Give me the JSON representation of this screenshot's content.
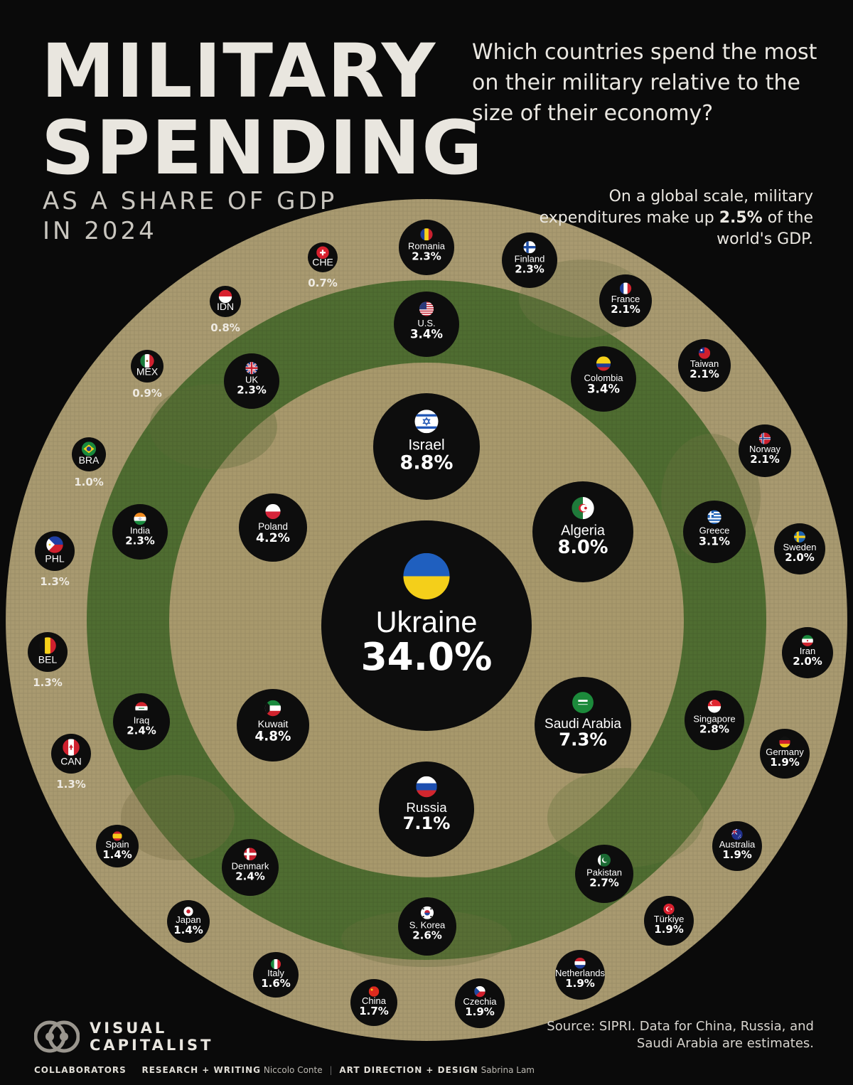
{
  "header": {
    "title_line1": "MILITARY",
    "title_line2": "SPENDING",
    "subtitle_line1": "AS A SHARE OF GDP",
    "subtitle_line2": "IN 2024",
    "question": "Which countries spend the most on their military relative to the size of their economy?",
    "note_before": "On a global scale, military expenditures make up ",
    "note_value": "2.5%",
    "note_after": " of the world's GDP."
  },
  "footer": {
    "source": "Source: SIPRI. Data for China, Russia, and Saudi Arabia are estimates.",
    "logo_line1": "VISUAL",
    "logo_line2": "CAPITALIST",
    "collab_label": "COLLABORATORS",
    "research_label": "RESEARCH + WRITING",
    "research_name": "Niccolo Conte",
    "art_label": "ART DIRECTION + DESIGN",
    "art_name": "Sabrina Lam"
  },
  "colors": {
    "outer_ring": "#a99a70",
    "middle_ring": "#4f6d31",
    "inner_ring": "#a8996c",
    "bubble": "#0d0d0d"
  },
  "chart_data": {
    "type": "bubble",
    "unit": "% of GDP",
    "year": 2024,
    "points": [
      {
        "country": "Ukraine",
        "value": 34.0,
        "label": "34.0%",
        "flag": "ukraine"
      },
      {
        "country": "Israel",
        "value": 8.8,
        "label": "8.8%",
        "flag": "israel"
      },
      {
        "country": "Algeria",
        "value": 8.0,
        "label": "8.0%",
        "flag": "algeria"
      },
      {
        "country": "Saudi Arabia",
        "value": 7.3,
        "label": "7.3%",
        "flag": "saudi"
      },
      {
        "country": "Russia",
        "value": 7.1,
        "label": "7.1%",
        "flag": "russia"
      },
      {
        "country": "Kuwait",
        "value": 4.8,
        "label": "4.8%",
        "flag": "kuwait"
      },
      {
        "country": "Poland",
        "value": 4.2,
        "label": "4.2%",
        "flag": "poland"
      },
      {
        "country": "U.S.",
        "value": 3.4,
        "label": "3.4%",
        "flag": "us"
      },
      {
        "country": "Colombia",
        "value": 3.4,
        "label": "3.4%",
        "flag": "colombia"
      },
      {
        "country": "Greece",
        "value": 3.1,
        "label": "3.1%",
        "flag": "greece"
      },
      {
        "country": "Singapore",
        "value": 2.8,
        "label": "2.8%",
        "flag": "singapore"
      },
      {
        "country": "Pakistan",
        "value": 2.7,
        "label": "2.7%",
        "flag": "pakistan"
      },
      {
        "country": "S. Korea",
        "value": 2.6,
        "label": "2.6%",
        "flag": "skorea"
      },
      {
        "country": "Denmark",
        "value": 2.4,
        "label": "2.4%",
        "flag": "denmark"
      },
      {
        "country": "Iraq",
        "value": 2.4,
        "label": "2.4%",
        "flag": "iraq"
      },
      {
        "country": "India",
        "value": 2.3,
        "label": "2.3%",
        "flag": "india"
      },
      {
        "country": "UK",
        "value": 2.3,
        "label": "2.3%",
        "flag": "uk"
      },
      {
        "country": "Romania",
        "value": 2.3,
        "label": "2.3%",
        "flag": "romania"
      },
      {
        "country": "Finland",
        "value": 2.3,
        "label": "2.3%",
        "flag": "finland"
      },
      {
        "country": "France",
        "value": 2.1,
        "label": "2.1%",
        "flag": "france"
      },
      {
        "country": "Taiwan",
        "value": 2.1,
        "label": "2.1%",
        "flag": "taiwan"
      },
      {
        "country": "Norway",
        "value": 2.1,
        "label": "2.1%",
        "flag": "norway"
      },
      {
        "country": "Sweden",
        "value": 2.0,
        "label": "2.0%",
        "flag": "sweden"
      },
      {
        "country": "Iran",
        "value": 2.0,
        "label": "2.0%",
        "flag": "iran"
      },
      {
        "country": "Germany",
        "value": 1.9,
        "label": "1.9%",
        "flag": "germany"
      },
      {
        "country": "Australia",
        "value": 1.9,
        "label": "1.9%",
        "flag": "australia"
      },
      {
        "country": "Türkiye",
        "value": 1.9,
        "label": "1.9%",
        "flag": "turkiye"
      },
      {
        "country": "Netherlands",
        "value": 1.9,
        "label": "1.9%",
        "flag": "netherlands"
      },
      {
        "country": "Czechia",
        "value": 1.9,
        "label": "1.9%",
        "flag": "czechia"
      },
      {
        "country": "China",
        "value": 1.7,
        "label": "1.7%",
        "flag": "china"
      },
      {
        "country": "Italy",
        "value": 1.6,
        "label": "1.6%",
        "flag": "italy"
      },
      {
        "country": "Japan",
        "value": 1.4,
        "label": "1.4%",
        "flag": "japan"
      },
      {
        "country": "Spain",
        "value": 1.4,
        "label": "1.4%",
        "flag": "spain"
      },
      {
        "country": "CAN",
        "value": 1.3,
        "label": "1.3%",
        "flag": "canada"
      },
      {
        "country": "BEL",
        "value": 1.3,
        "label": "1.3%",
        "flag": "belgium"
      },
      {
        "country": "PHL",
        "value": 1.3,
        "label": "1.3%",
        "flag": "philippines"
      },
      {
        "country": "BRA",
        "value": 1.0,
        "label": "1.0%",
        "flag": "brazil"
      },
      {
        "country": "MEX",
        "value": 0.9,
        "label": "0.9%",
        "flag": "mexico"
      },
      {
        "country": "IDN",
        "value": 0.8,
        "label": "0.8%",
        "flag": "indonesia"
      },
      {
        "country": "CHE",
        "value": 0.7,
        "label": "0.7%",
        "flag": "switzerland"
      }
    ]
  }
}
